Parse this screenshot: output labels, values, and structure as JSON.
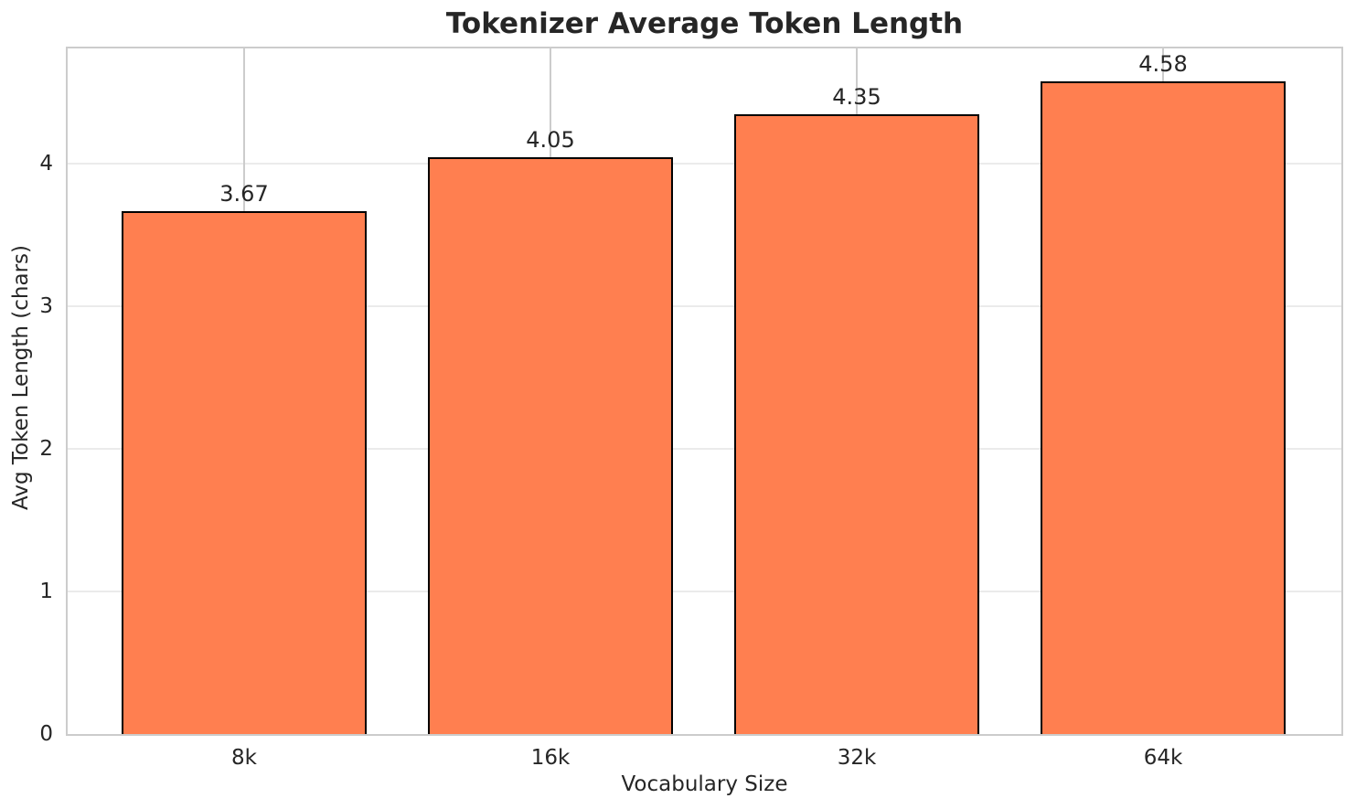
{
  "chart_data": {
    "type": "bar",
    "title": "Tokenizer Average Token Length",
    "xlabel": "Vocabulary Size",
    "ylabel": "Avg Token Length (chars)",
    "categories": [
      "8k",
      "16k",
      "32k",
      "64k"
    ],
    "values": [
      3.67,
      4.05,
      4.35,
      4.58
    ],
    "value_labels": [
      "3.67",
      "4.05",
      "4.35",
      "4.58"
    ],
    "yticks": [
      0,
      1,
      2,
      3,
      4
    ],
    "ytick_labels": [
      "0",
      "1",
      "2",
      "3",
      "4"
    ],
    "ylim": [
      0,
      4.81
    ],
    "grid": true,
    "legend": "none",
    "bar_width_fraction": 0.8,
    "colors": {
      "bar_fill": "#ff7f50",
      "bar_edge": "#000000",
      "text": "#262626",
      "title_text": "#262626",
      "spine": "#cccccc",
      "grid_vertical": "#cccccc",
      "grid_horizontal": "#ebebeb",
      "background": "#ffffff"
    }
  }
}
